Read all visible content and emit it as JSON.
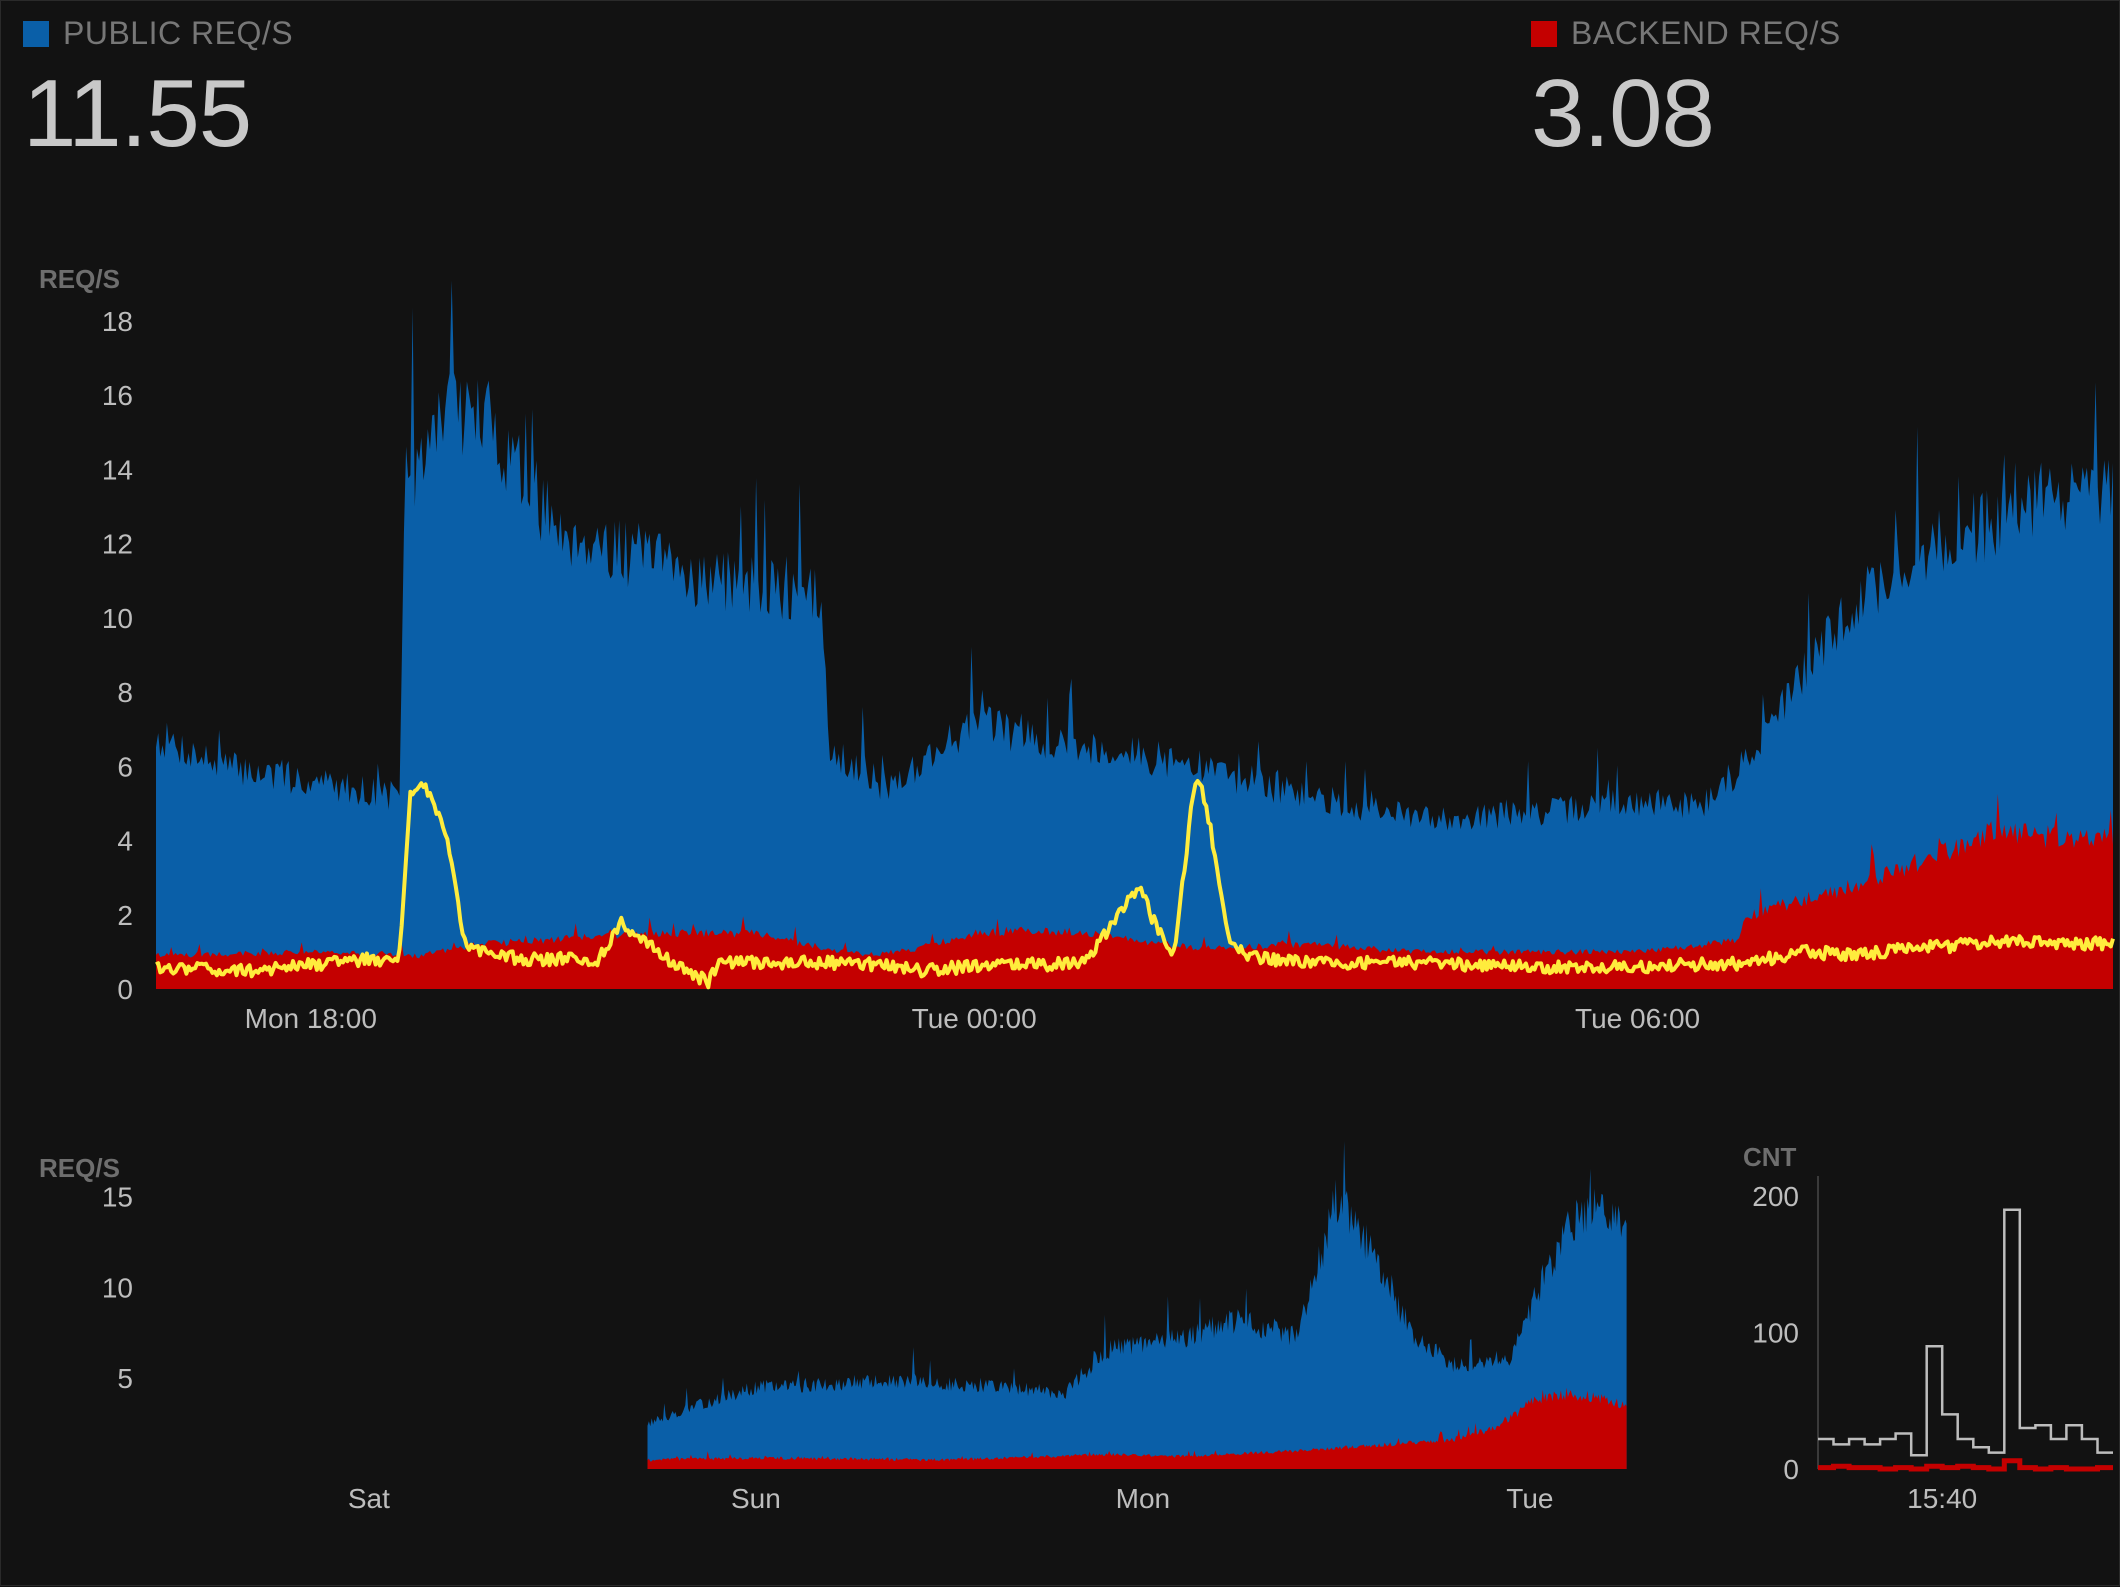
{
  "stats": {
    "public": {
      "label": "PUBLIC REQ/S",
      "value": "11.55",
      "color": "#0a5fa8"
    },
    "backend": {
      "label": "BACKEND REQ/S",
      "value": "3.08",
      "color": "#c40000"
    }
  },
  "chart_data": [
    {
      "name": "main",
      "type": "area",
      "ylabel": "REQ/S",
      "ylim": [
        0,
        18
      ],
      "yticks": [
        0,
        2,
        4,
        6,
        8,
        10,
        12,
        14,
        16,
        18
      ],
      "x_tick_labels": [
        "Mon 18:00",
        "Tue 00:00",
        "Tue 06:00"
      ],
      "x_tick_hours": [
        18,
        24,
        30
      ],
      "xlim_hours": [
        16.6,
        34.3
      ],
      "series": [
        {
          "key": "public",
          "color": "#0a5fa8",
          "style": "area",
          "x": [
            16.6,
            17.2,
            18.0,
            18.8,
            18.85,
            19.2,
            19.6,
            20.2,
            20.8,
            21.4,
            22.0,
            22.6,
            22.7,
            23.2,
            24.0,
            24.8,
            25.5,
            26.0,
            27.0,
            28.0,
            29.0,
            29.8,
            30.6,
            31.0,
            31.5,
            32.0,
            32.6,
            33.2,
            33.8,
            34.3
          ],
          "y": [
            6.8,
            6.0,
            5.6,
            5.2,
            12.8,
            15.8,
            15.3,
            12.5,
            11.8,
            11.2,
            10.8,
            10.5,
            6.5,
            5.4,
            7.2,
            6.6,
            6.3,
            6.0,
            5.2,
            4.6,
            4.7,
            5.0,
            5.0,
            6.2,
            8.5,
            10.5,
            11.8,
            12.6,
            13.4,
            13.2
          ]
        },
        {
          "key": "backend",
          "color": "#c40000",
          "style": "area",
          "x": [
            16.6,
            18.0,
            19.0,
            19.5,
            20.5,
            21.0,
            22.0,
            23.0,
            23.5,
            24.0,
            24.5,
            25.0,
            25.5,
            26.0,
            27.0,
            28.0,
            29.0,
            30.0,
            30.9,
            31.0,
            32.0,
            32.6,
            33.2,
            34.3
          ],
          "y": [
            0.9,
            1.0,
            0.9,
            1.2,
            1.4,
            1.5,
            1.5,
            0.9,
            1.1,
            1.5,
            1.6,
            1.5,
            1.3,
            1.1,
            1.2,
            1.0,
            1.0,
            1.0,
            1.3,
            2.0,
            2.8,
            3.5,
            4.2,
            4.0
          ]
        },
        {
          "key": "overlay",
          "color": "#ffec3d",
          "style": "line",
          "x": [
            16.6,
            17.5,
            18.5,
            18.8,
            18.9,
            19.0,
            19.2,
            19.4,
            19.6,
            20.0,
            20.6,
            20.8,
            21.0,
            21.3,
            21.6,
            21.7,
            22.0,
            23.0,
            23.5,
            24.0,
            25.0,
            25.5,
            25.6,
            25.8,
            26.0,
            26.1,
            26.3,
            26.5,
            26.7,
            27.0,
            28.0,
            29.0,
            30.0,
            31.0,
            31.5,
            32.0,
            32.5,
            33.0,
            33.5,
            34.3
          ],
          "y": [
            0.6,
            0.5,
            0.8,
            0.8,
            5.3,
            5.6,
            4.5,
            1.2,
            0.9,
            0.8,
            0.8,
            1.8,
            1.4,
            0.6,
            0.2,
            0.7,
            0.7,
            0.7,
            0.5,
            0.6,
            0.7,
            2.8,
            2.0,
            0.8,
            5.7,
            5.0,
            1.3,
            0.9,
            0.8,
            0.7,
            0.7,
            0.6,
            0.6,
            0.7,
            1.0,
            0.9,
            1.1,
            1.2,
            1.3,
            1.2
          ]
        }
      ]
    },
    {
      "name": "week",
      "type": "area",
      "ylabel": "REQ/S",
      "ylim": [
        0,
        18
      ],
      "yticks": [
        5,
        10,
        15
      ],
      "x_tick_labels": [
        "Sat",
        "Sun",
        "Mon",
        "Tue"
      ],
      "x_tick_days": [
        0,
        1,
        2,
        3
      ],
      "xlim_days": [
        -0.55,
        3.3
      ],
      "series": [
        {
          "key": "public",
          "color": "#0a5fa8",
          "style": "area",
          "x": [
            0.72,
            0.85,
            1.0,
            1.3,
            1.6,
            1.8,
            1.9,
            2.1,
            2.25,
            2.4,
            2.5,
            2.6,
            2.7,
            2.8,
            2.95,
            3.0,
            3.1,
            3.2,
            3.25
          ],
          "y": [
            2.5,
            3.5,
            4.5,
            4.8,
            4.6,
            4.2,
            6.5,
            7.2,
            8.2,
            7.2,
            14.8,
            11.8,
            7.2,
            5.8,
            6.2,
            8.8,
            13.5,
            14.6,
            12.8
          ]
        },
        {
          "key": "backend",
          "color": "#c40000",
          "style": "area",
          "x": [
            0.72,
            1.0,
            1.5,
            1.9,
            2.1,
            2.4,
            2.8,
            2.9,
            3.0,
            3.1,
            3.25
          ],
          "y": [
            0.5,
            0.6,
            0.5,
            0.8,
            0.7,
            1.0,
            1.6,
            2.2,
            3.6,
            4.2,
            3.6
          ]
        }
      ]
    },
    {
      "name": "count",
      "type": "line",
      "ylabel": "CNT",
      "ylim": [
        0,
        200
      ],
      "yticks": [
        0,
        100,
        200
      ],
      "x_tick_labels": [
        "15:40"
      ],
      "x_tick_minutes": [
        40
      ],
      "xlim_minutes": [
        32,
        51
      ],
      "series": [
        {
          "key": "total",
          "color": "#bdbdbd",
          "style": "step",
          "x": [
            32,
            33,
            34,
            35,
            36,
            37,
            38,
            39,
            40,
            41,
            42,
            43,
            44,
            45,
            46,
            47,
            48,
            49,
            50,
            51
          ],
          "y": [
            22,
            18,
            22,
            18,
            22,
            26,
            10,
            90,
            40,
            22,
            16,
            12,
            190,
            30,
            32,
            22,
            32,
            22,
            12,
            12
          ]
        },
        {
          "key": "error",
          "color": "#c40000",
          "style": "step",
          "x": [
            32,
            33,
            34,
            35,
            36,
            37,
            38,
            39,
            40,
            41,
            42,
            43,
            44,
            45,
            46,
            47,
            48,
            49,
            50,
            51
          ],
          "y": [
            1,
            2,
            1,
            1,
            0,
            1,
            0,
            2,
            1,
            2,
            1,
            0,
            6,
            1,
            0,
            1,
            0,
            0,
            1,
            0
          ]
        }
      ]
    }
  ]
}
